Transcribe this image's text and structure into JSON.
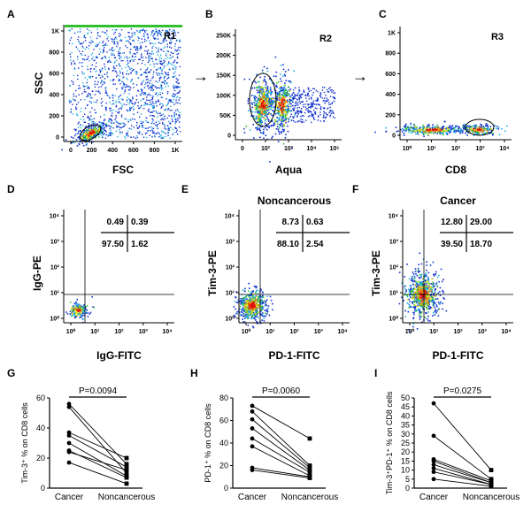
{
  "chart_data": [
    {
      "panel": "A",
      "type": "scatter",
      "xlabel": "FSC",
      "ylabel": "SSC",
      "gate_label": "R1",
      "x_ticks": [
        "0",
        "200",
        "400",
        "600",
        "800",
        "1K"
      ],
      "y_ticks": [
        "0",
        "200",
        "400",
        "600",
        "800",
        "1K"
      ],
      "xlim": [
        0,
        1024
      ],
      "ylim": [
        0,
        1024
      ]
    },
    {
      "panel": "B",
      "type": "scatter",
      "xlabel": "Aqua",
      "ylabel": "",
      "gate_label": "R2",
      "x_ticks": [
        "0",
        "10²",
        "10³",
        "10⁴",
        "10⁵"
      ],
      "y_ticks": [
        "0",
        "50K",
        "100K",
        "150K",
        "200K",
        "250K"
      ],
      "ylim": [
        0,
        262144
      ]
    },
    {
      "panel": "C",
      "type": "scatter",
      "xlabel": "CD8",
      "ylabel": "",
      "gate_label": "R3",
      "x_ticks": [
        "10⁰",
        "10¹",
        "10²",
        "10³",
        "10⁴"
      ],
      "y_ticks": [
        "0",
        "200",
        "400",
        "600",
        "800",
        "1K"
      ],
      "ylim": [
        0,
        1024
      ]
    },
    {
      "panel": "D",
      "type": "scatter",
      "title": "",
      "xlabel": "IgG-FITC",
      "ylabel": "IgG-PE",
      "x_ticks": [
        "10⁰",
        "10¹",
        "10²",
        "10³",
        "10⁴"
      ],
      "y_ticks": [
        "10⁰",
        "10¹",
        "10²",
        "10³",
        "10⁴"
      ],
      "quadrants": {
        "upper_left": "0.49",
        "upper_right": "0.39",
        "lower_left": "97.50",
        "lower_right": "1.62"
      }
    },
    {
      "panel": "E",
      "type": "scatter",
      "title": "Noncancerous",
      "xlabel": "PD-1-FITC",
      "ylabel": "Tim-3-PE",
      "x_ticks": [
        "10⁰",
        "10¹",
        "10²",
        "10³",
        "10⁴"
      ],
      "y_ticks": [
        "10⁰",
        "10¹",
        "10²",
        "10³",
        "10⁴"
      ],
      "quadrants": {
        "upper_left": "8.73",
        "upper_right": "0.63",
        "lower_left": "88.10",
        "lower_right": "2.54"
      }
    },
    {
      "panel": "F",
      "type": "scatter",
      "title": "Cancer",
      "xlabel": "PD-1-FITC",
      "ylabel": "Tim-3-PE",
      "x_ticks": [
        "10⁰",
        "10¹",
        "10²",
        "10³",
        "10⁴"
      ],
      "y_ticks": [
        "10⁰",
        "10¹",
        "10²",
        "10³",
        "10⁴"
      ],
      "quadrants": {
        "upper_left": "12.80",
        "upper_right": "29.00",
        "lower_left": "39.50",
        "lower_right": "18.70"
      }
    },
    {
      "panel": "G",
      "type": "line",
      "ylabel": "Tim-3⁺ % on CD8 cells",
      "categories": [
        "Cancer",
        "Noncancerous"
      ],
      "ylim": [
        0,
        60
      ],
      "y_ticks": [
        0,
        20,
        40,
        60
      ],
      "pvalue": "P=0.0094",
      "pairs": [
        [
          56,
          16
        ],
        [
          54,
          10
        ],
        [
          37,
          20
        ],
        [
          35,
          14
        ],
        [
          30,
          8
        ],
        [
          25,
          7
        ],
        [
          24,
          12
        ],
        [
          17,
          3
        ]
      ]
    },
    {
      "panel": "H",
      "type": "line",
      "ylabel": "PD-1⁺ % on CD8 cells",
      "categories": [
        "Cancer",
        "Noncancerous"
      ],
      "ylim": [
        0,
        80
      ],
      "y_ticks": [
        0,
        20,
        40,
        60,
        80
      ],
      "pvalue": "P=0.0060",
      "pairs": [
        [
          73,
          44
        ],
        [
          68,
          20
        ],
        [
          61,
          18
        ],
        [
          53,
          16
        ],
        [
          44,
          14
        ],
        [
          37,
          11
        ],
        [
          18,
          10
        ],
        [
          16,
          9
        ]
      ]
    },
    {
      "panel": "I",
      "type": "line",
      "ylabel": "Tim-3⁺PD-1⁺ % on CD8 cells",
      "categories": [
        "Cancer",
        "Noncancerous"
      ],
      "ylim": [
        0,
        50
      ],
      "y_ticks": [
        0,
        5,
        10,
        15,
        20,
        25,
        30,
        35,
        40,
        45,
        50
      ],
      "pvalue": "P=0.0275",
      "pairs": [
        [
          47,
          10
        ],
        [
          29,
          5
        ],
        [
          16,
          4
        ],
        [
          15,
          3
        ],
        [
          13,
          3
        ],
        [
          11,
          2
        ],
        [
          9,
          2
        ],
        [
          5,
          1
        ]
      ]
    }
  ],
  "colors": {
    "blue": "#1030d0",
    "cyan": "#20b0e0",
    "green": "#30c030",
    "yellow": "#f0e020",
    "orange": "#f08010",
    "red": "#e01010"
  },
  "arrows": [
    "→",
    "→"
  ]
}
